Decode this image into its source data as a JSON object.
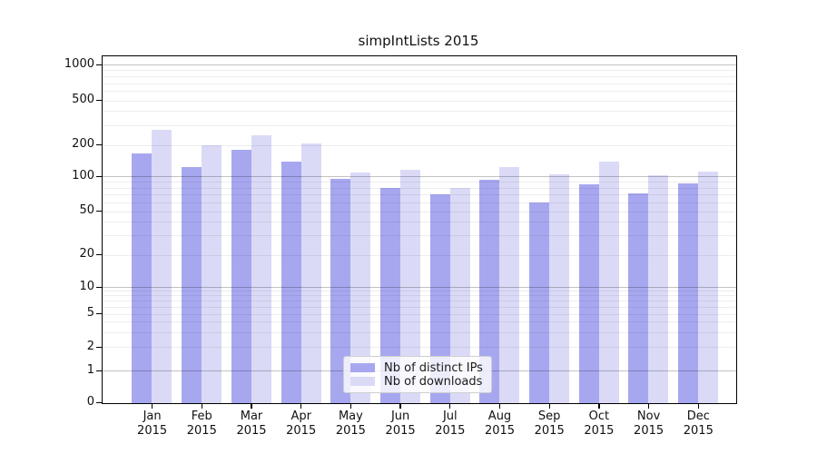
{
  "title": "simpIntLists 2015",
  "colors": {
    "distinct_ips": "#a7a7f0",
    "downloads": "#dadaf7",
    "major_grid": "rgba(0,0,0,0.24)",
    "minor_grid": "rgba(0,0,0,0.07)"
  },
  "legend": {
    "items": [
      {
        "label": "Nb of distinct IPs",
        "color": "#a7a7f0"
      },
      {
        "label": "Nb of downloads",
        "color": "#dadaf7"
      }
    ]
  },
  "chart_data": {
    "type": "bar",
    "title": "simpIntLists 2015",
    "categories": [
      "Jan",
      "Feb",
      "Mar",
      "Apr",
      "May",
      "Jun",
      "Jul",
      "Aug",
      "Sep",
      "Oct",
      "Nov",
      "Dec"
    ],
    "year": "2015",
    "x_tick_labels": [
      "Jan 2015",
      "Feb 2015",
      "Mar 2015",
      "Apr 2015",
      "May 2015",
      "Jun 2015",
      "Jul 2015",
      "Aug 2015",
      "Sep 2015",
      "Oct 2015",
      "Nov 2015",
      "Dec 2015"
    ],
    "series": [
      {
        "name": "Nb of distinct IPs",
        "color": "#a7a7f0",
        "values": [
          165,
          124,
          180,
          140,
          96,
          79,
          70,
          93,
          59,
          85,
          71,
          87
        ]
      },
      {
        "name": "Nb of downloads",
        "color": "#dadaf7",
        "values": [
          270,
          197,
          245,
          205,
          110,
          116,
          80,
          124,
          105,
          140,
          103,
          112
        ]
      }
    ],
    "y_axis": {
      "scale": "symlog",
      "ticks": [
        0,
        1,
        2,
        5,
        10,
        20,
        50,
        100,
        200,
        500,
        1000
      ],
      "ylim": [
        0,
        1200
      ],
      "grid": true
    },
    "legend_position": "lower center"
  }
}
